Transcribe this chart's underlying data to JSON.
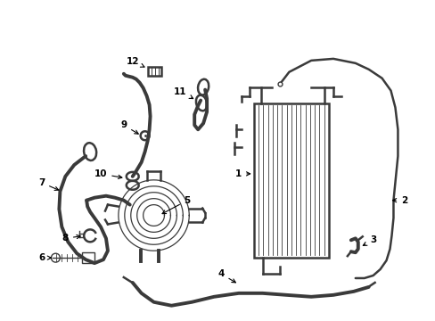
{
  "bg_color": "#ffffff",
  "line_color": "#3a3a3a",
  "lw_thin": 1.0,
  "lw_med": 1.8,
  "lw_hose": 2.8,
  "label_color": "#000000",
  "label_fontsize": 7.5,
  "figsize": [
    4.89,
    3.6
  ],
  "dpi": 100
}
